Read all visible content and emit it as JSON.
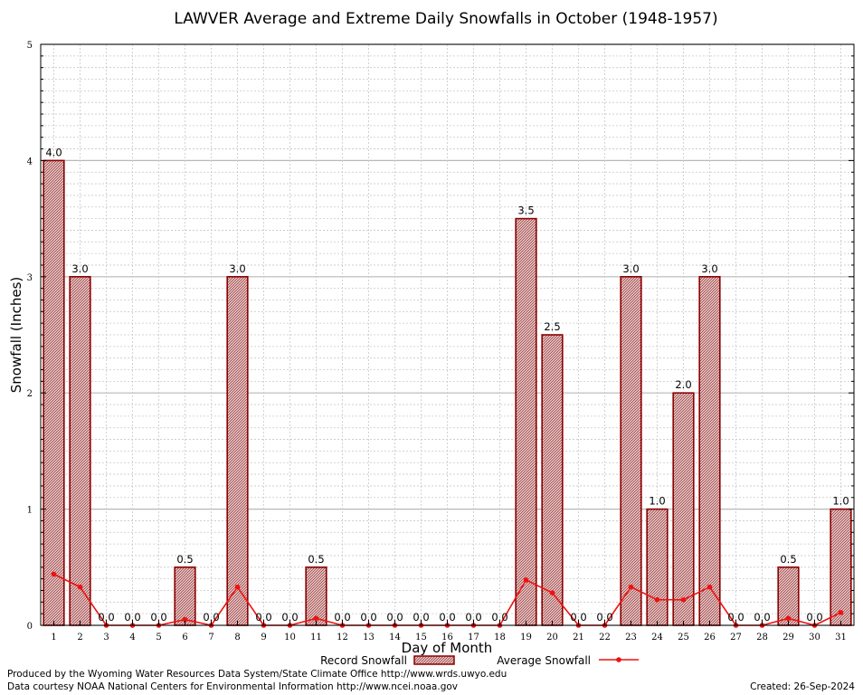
{
  "chart_data": {
    "type": "bar",
    "title": "LAWVER Average and Extreme Daily Snowfalls in October (1948-1957)",
    "xlabel": "Day of Month",
    "ylabel": "Snowfall (Inches)",
    "ylim": [
      0,
      5
    ],
    "yticks": [
      "0",
      "1",
      "2",
      "3",
      "4",
      "5"
    ],
    "categories": [
      "1",
      "2",
      "3",
      "4",
      "5",
      "6",
      "7",
      "8",
      "9",
      "10",
      "11",
      "12",
      "13",
      "14",
      "15",
      "16",
      "17",
      "18",
      "19",
      "20",
      "21",
      "22",
      "23",
      "24",
      "25",
      "26",
      "27",
      "28",
      "29",
      "30",
      "31"
    ],
    "series": [
      {
        "name": "Record Snowfall",
        "type": "bar",
        "values": [
          4.0,
          3.0,
          0.0,
          0.0,
          0.0,
          0.5,
          0.0,
          3.0,
          0.0,
          0.0,
          0.5,
          0.0,
          0.0,
          0.0,
          0.0,
          0.0,
          0.0,
          0.0,
          3.5,
          2.5,
          0.0,
          0.0,
          3.0,
          1.0,
          2.0,
          3.0,
          0.0,
          0.0,
          0.5,
          0.0,
          1.0
        ],
        "labels": [
          "4.0",
          "3.0",
          "0.0",
          "0.0",
          "0.0",
          "0.5",
          "0.0",
          "3.0",
          "0.0",
          "0.0",
          "0.5",
          "0.0",
          "0.0",
          "0.0",
          "0.0",
          "0.0",
          "0.0",
          "0.0",
          "3.5",
          "2.5",
          "0.0",
          "0.0",
          "3.0",
          "1.0",
          "2.0",
          "3.0",
          "0.0",
          "0.0",
          "0.5",
          "0.0",
          "1.0"
        ]
      },
      {
        "name": "Average Snowfall",
        "type": "line",
        "values": [
          0.44,
          0.33,
          0.0,
          0.0,
          0.0,
          0.05,
          0.0,
          0.33,
          0.0,
          0.0,
          0.06,
          0.0,
          0.0,
          0.0,
          0.0,
          0.0,
          0.0,
          0.0,
          0.39,
          0.28,
          0.0,
          0.0,
          0.33,
          0.22,
          0.22,
          0.33,
          0.0,
          0.0,
          0.06,
          0.0,
          0.11
        ]
      }
    ],
    "grid": true,
    "legend": "bottom",
    "colors": {
      "bar_fill": "#c8a0a0",
      "bar_stroke": "#8b0000",
      "line": "#ee1111",
      "grid": "#c0c0c0"
    }
  },
  "credits": {
    "produced_by": "Produced by the Wyoming Water Resources Data System/State Climate Office http://www.wrds.uwyo.edu",
    "data_courtesy": "Data courtesy NOAA National Centers for Environmental Information http://www.ncei.noaa.gov",
    "created": "Created:  26-Sep-2024"
  }
}
